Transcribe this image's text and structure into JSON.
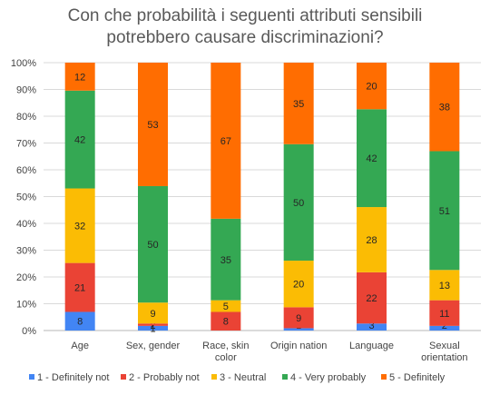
{
  "chart_data": {
    "type": "bar",
    "stacked": "percent",
    "title_lines": [
      "Con che probabilità i seguenti attributi sensibili",
      "potrebbero causare discriminazioni?"
    ],
    "categories": [
      [
        "Age"
      ],
      [
        "Sex, gender"
      ],
      [
        "Race, skin",
        "color"
      ],
      [
        "Origin nation"
      ],
      [
        "Language"
      ],
      [
        "Sexual",
        "orientation"
      ]
    ],
    "y_tick_labels": [
      "0%",
      "10%",
      "20%",
      "30%",
      "40%",
      "50%",
      "60%",
      "70%",
      "80%",
      "90%",
      "100%"
    ],
    "ylim": [
      0,
      100
    ],
    "grid": true,
    "legend_position": "bottom",
    "series": [
      {
        "name": "1 - Definitely not",
        "color": "#4285F4",
        "values": [
          8,
          2,
          0,
          1,
          3,
          2
        ]
      },
      {
        "name": "2 - Probably not",
        "color": "#EA4335",
        "values": [
          21,
          1,
          8,
          9,
          22,
          11
        ]
      },
      {
        "name": "3 - Neutral",
        "color": "#FBBC04",
        "values": [
          32,
          9,
          5,
          20,
          28,
          13
        ]
      },
      {
        "name": "4 - Very probably",
        "color": "#34A853",
        "values": [
          42,
          50,
          35,
          50,
          42,
          51
        ]
      },
      {
        "name": "5 - Definitely",
        "color": "#FF6D01",
        "values": [
          12,
          53,
          67,
          35,
          20,
          38
        ]
      }
    ]
  }
}
